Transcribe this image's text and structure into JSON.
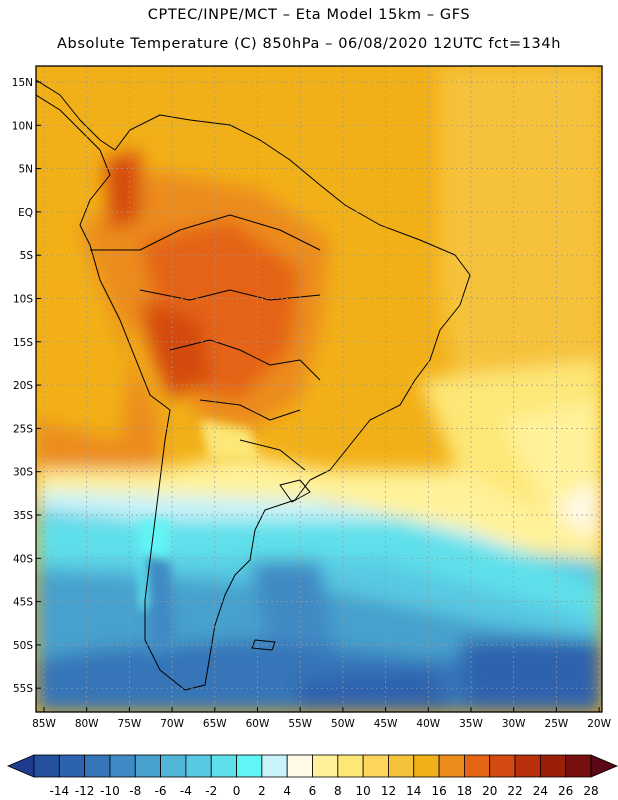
{
  "header": {
    "line1": "CPTEC/INPE/MCT –  Eta Model 15km – GFS",
    "line2": "Absolute Temperature (C) 850hPa – 06/08/2020 12UTC fct=134h"
  },
  "map": {
    "lat_labels": [
      "15N",
      "10N",
      "5N",
      "EQ",
      "5S",
      "10S",
      "15S",
      "20S",
      "25S",
      "30S",
      "35S",
      "40S",
      "45S",
      "50S",
      "55S"
    ],
    "lon_labels": [
      "85W",
      "80W",
      "75W",
      "70W",
      "65W",
      "60W",
      "55W",
      "50W",
      "45W",
      "40W",
      "35W",
      "30W",
      "25W",
      "20W"
    ]
  },
  "legend": {
    "levels": [
      "-14",
      "-12",
      "-10",
      "-8",
      "-6",
      "-4",
      "-2",
      "0",
      "2",
      "4",
      "6",
      "8",
      "10",
      "12",
      "14",
      "16",
      "18",
      "20",
      "22",
      "24",
      "26",
      "28"
    ],
    "colors": [
      "#1e3d8f",
      "#24509e",
      "#2d62ae",
      "#3675b8",
      "#3f8ac4",
      "#47a0cd",
      "#4fb6d8",
      "#58c9e2",
      "#5ee0ea",
      "#62f5f5",
      "#c9f3fa",
      "#fff9e6",
      "#fff29a",
      "#fde777",
      "#fbd65a",
      "#f6c23a",
      "#f2b018",
      "#ec8c1a",
      "#e46314",
      "#d44a10",
      "#b8300c",
      "#9a1f08",
      "#781010",
      "#5a0818"
    ]
  }
}
